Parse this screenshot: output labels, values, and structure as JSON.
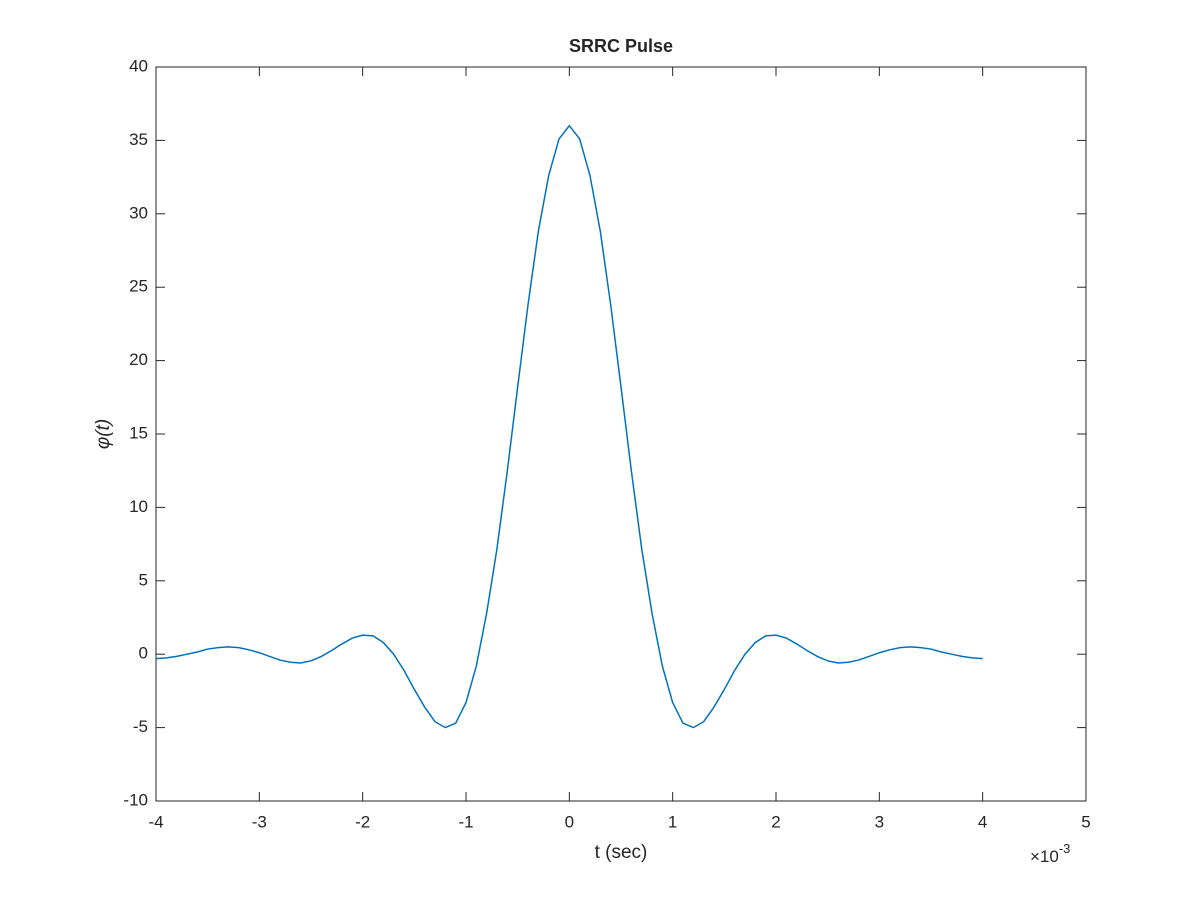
{
  "chart_data": {
    "type": "line",
    "title": "SRRC Pulse",
    "x_label": "t (sec)",
    "y_label": "φ(t)",
    "x_exponent": {
      "base": "×10",
      "power": "-3"
    },
    "x": [
      -4,
      -3.9,
      -3.8,
      -3.7,
      -3.6,
      -3.5,
      -3.4,
      -3.3,
      -3.2,
      -3.1,
      -3,
      -2.9,
      -2.8,
      -2.7,
      -2.6,
      -2.5,
      -2.4,
      -2.3,
      -2.2,
      -2.1,
      -2,
      -1.9,
      -1.8,
      -1.7,
      -1.6,
      -1.5,
      -1.4,
      -1.3,
      -1.2,
      -1.1,
      -1,
      -0.9,
      -0.8,
      -0.7,
      -0.6,
      -0.5,
      -0.4,
      -0.3,
      -0.2,
      -0.1,
      0,
      0.1,
      0.2,
      0.3,
      0.4,
      0.5,
      0.6,
      0.7,
      0.8,
      0.9,
      1,
      1.1,
      1.2,
      1.3,
      1.4,
      1.5,
      1.6,
      1.7,
      1.8,
      1.9,
      2,
      2.1,
      2.2,
      2.3,
      2.4,
      2.5,
      2.6,
      2.7,
      2.8,
      2.9,
      3,
      3.1,
      3.2,
      3.3,
      3.4,
      3.5,
      3.6,
      3.7,
      3.8,
      3.9,
      4
    ],
    "values": [
      -0.3,
      -0.25,
      -0.15,
      0.0,
      0.15,
      0.35,
      0.45,
      0.5,
      0.45,
      0.3,
      0.1,
      -0.15,
      -0.4,
      -0.55,
      -0.6,
      -0.45,
      -0.15,
      0.25,
      0.7,
      1.1,
      1.3,
      1.25,
      0.8,
      0.0,
      -1.1,
      -2.4,
      -3.6,
      -4.6,
      -5.0,
      -4.7,
      -3.3,
      -0.8,
      2.8,
      7.2,
      12.5,
      18.2,
      23.8,
      28.8,
      32.6,
      35.1,
      36,
      35.1,
      32.6,
      28.8,
      23.8,
      18.2,
      12.5,
      7.2,
      2.8,
      -0.8,
      -3.3,
      -4.7,
      -5.0,
      -4.6,
      -3.6,
      -2.4,
      -1.1,
      0.0,
      0.8,
      1.25,
      1.3,
      1.1,
      0.7,
      0.25,
      -0.15,
      -0.45,
      -0.6,
      -0.55,
      -0.4,
      -0.15,
      0.1,
      0.3,
      0.45,
      0.5,
      0.45,
      0.35,
      0.15,
      0.0,
      -0.15,
      -0.25,
      -0.3
    ],
    "color": "#0072bd",
    "xlim": [
      -4,
      5
    ],
    "xticks": [
      -4,
      -3,
      -2,
      -1,
      0,
      1,
      2,
      3,
      4,
      5
    ],
    "ylim": [
      -10,
      40
    ],
    "yticks": [
      -10,
      -5,
      0,
      5,
      10,
      15,
      20,
      25,
      30,
      35,
      40
    ],
    "grid": false
  }
}
